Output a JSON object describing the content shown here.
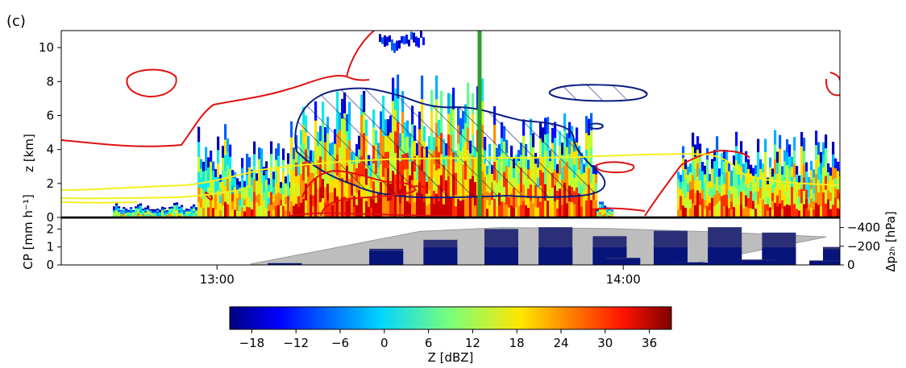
{
  "panel_label": "(c)",
  "chart_data": [
    {
      "type": "heatmap",
      "description_role": "radar reflectivity time-height section",
      "ylabel": "z [km]",
      "y_ticks": [
        0,
        2,
        4,
        6,
        8,
        10
      ],
      "ylim": [
        0,
        11
      ],
      "x_ticks": [
        "13:00",
        "14:00"
      ],
      "xlim": [
        "12:37",
        "14:32"
      ],
      "grid": false,
      "colorbar": {
        "label": "Z [dBZ]",
        "ticks": [
          -18,
          -12,
          -6,
          0,
          6,
          12,
          18,
          24,
          30,
          36
        ],
        "range": [
          -21,
          39
        ],
        "colormap": "jet"
      },
      "vertical_line": {
        "time": "13:42",
        "color": "#2ca02c"
      },
      "contours": [
        {
          "color": "#e01010",
          "kind": "red contour"
        },
        {
          "color": "#f5f020",
          "kind": "yellow contour"
        },
        {
          "color": "#0a1d82",
          "kind": "navy hatched region"
        }
      ]
    },
    {
      "type": "bar",
      "description_role": "cold-pool precipitation and pressure change",
      "ylabel": "CP [mm h⁻¹]",
      "y_ticks": [
        0,
        1,
        2
      ],
      "ylim": [
        0,
        2.6
      ],
      "ylabel_right": "Δp₂ₕ [hPa]",
      "y2_ticks": [
        "−400",
        "−200",
        "0"
      ],
      "y2lim": [
        0,
        -500
      ],
      "x_ticks": [
        "13:00",
        "14:00"
      ],
      "series": [
        {
          "color": "#2b2f78"
        },
        {
          "color": "#07147a"
        },
        {
          "color": "#bdbdbd"
        }
      ],
      "bar_minutes": [
        13.1,
        13.25,
        13.33,
        13.42,
        13.5,
        13.58,
        13.67,
        13.75,
        13.83,
        13.92,
        14.0,
        14.1,
        14.2,
        14.3,
        14.4
      ],
      "cp_values": [
        0.1,
        0.9,
        1.4,
        2.0,
        2.1,
        1.6,
        1.9,
        2.1,
        1.8,
        1.0,
        0.4,
        0.15,
        0.3,
        0.25,
        0.1
      ],
      "dp_polygon_times": [
        13.05,
        13.3,
        13.42,
        13.58,
        13.75,
        13.9,
        14.1
      ],
      "dp_polygon_values": [
        -10,
        -360,
        -400,
        -390,
        -350,
        -300,
        -10
      ]
    }
  ]
}
